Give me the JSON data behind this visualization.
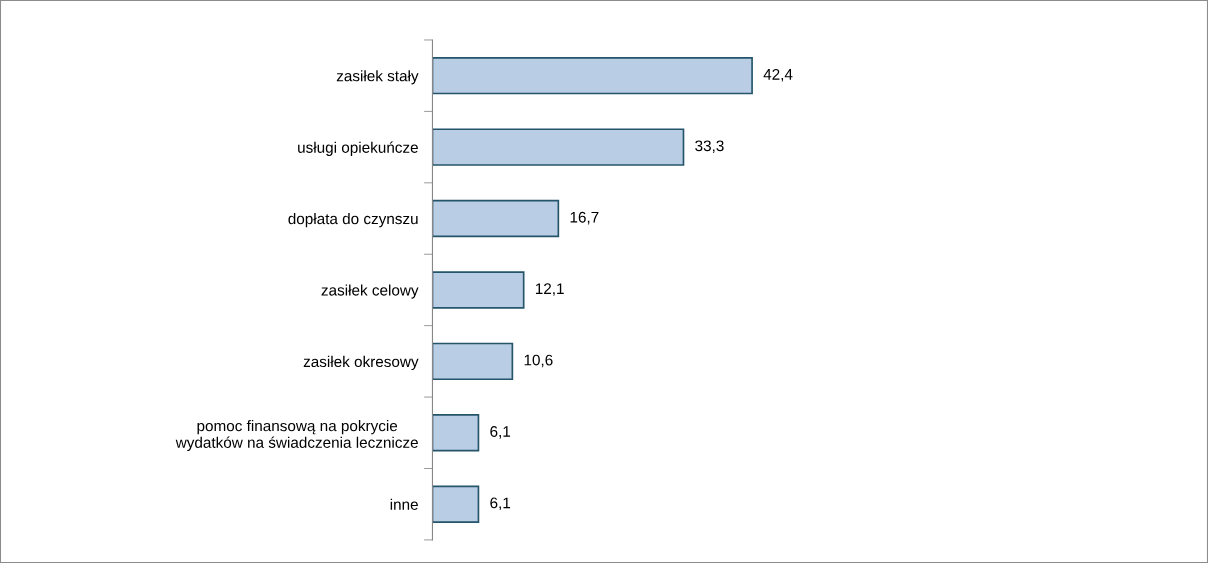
{
  "chart_data": {
    "type": "bar",
    "orientation": "horizontal",
    "categories": [
      "zasiłek stały",
      "usługi opiekuńcze",
      "dopłata do czynszu",
      "zasiłek celowy",
      "zasiłek okresowy",
      "pomoc finansową na pokrycie\nwydatków na świadczenia lecznicze",
      "inne"
    ],
    "values": [
      42.4,
      33.3,
      16.7,
      12.1,
      10.6,
      6.1,
      6.1
    ],
    "value_labels": [
      "42,4",
      "33,3",
      "16,7",
      "12,1",
      "10,6",
      "6,1",
      "6,1"
    ],
    "color": "#b9cde5"
  }
}
